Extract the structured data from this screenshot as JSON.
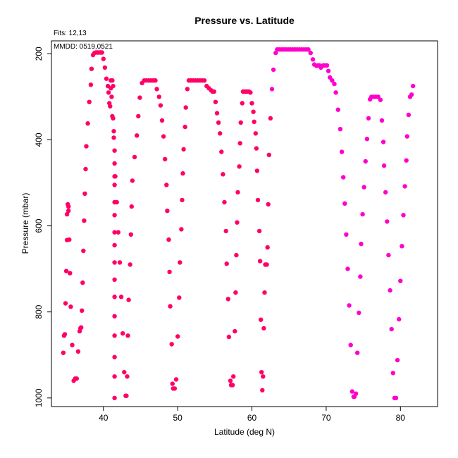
{
  "chart_data": {
    "type": "scatter",
    "title": "Pressure vs. Latitude",
    "xlabel": "Latitude (deg N)",
    "ylabel": "Pressure (mbar)",
    "xlim": [
      33,
      85
    ],
    "ylim": [
      1020,
      170
    ],
    "y_inverted": true,
    "xticks": [
      40,
      50,
      60,
      70,
      80
    ],
    "yticks": [
      200,
      400,
      600,
      800,
      1000
    ],
    "notes": {
      "fits": "Fits: 12,13",
      "mmdd": "MMDD: 0519,0521"
    },
    "colors": {
      "early": "#ff0066",
      "late": "#ff00cc"
    },
    "grid": false,
    "legend": "none",
    "series": [
      {
        "color_key": "early",
        "points": [
          [
            34.6,
            895
          ],
          [
            34.7,
            855
          ],
          [
            34.8,
            852
          ],
          [
            34.9,
            780
          ],
          [
            35.0,
            705
          ],
          [
            35.1,
            633
          ],
          [
            35.1,
            573
          ],
          [
            35.2,
            550
          ],
          [
            35.3,
            555
          ],
          [
            35.3,
            565
          ],
          [
            35.4,
            632
          ],
          [
            35.5,
            710
          ],
          [
            35.6,
            788
          ],
          [
            35.8,
            877
          ],
          [
            36.0,
            960
          ],
          [
            36.2,
            955
          ],
          [
            36.4,
            955
          ],
          [
            36.6,
            892
          ],
          [
            36.8,
            845
          ],
          [
            36.9,
            838
          ],
          [
            37.0,
            836
          ],
          [
            37.1,
            797
          ],
          [
            37.2,
            732
          ],
          [
            37.3,
            658
          ],
          [
            37.4,
            588
          ],
          [
            37.5,
            525
          ],
          [
            37.6,
            468
          ],
          [
            37.7,
            415
          ],
          [
            37.9,
            362
          ],
          [
            38.1,
            312
          ],
          [
            38.3,
            272
          ],
          [
            38.4,
            235
          ],
          [
            38.6,
            203
          ],
          [
            38.8,
            198
          ],
          [
            39.0,
            197
          ],
          [
            39.2,
            197
          ],
          [
            39.4,
            197
          ],
          [
            39.6,
            197
          ],
          [
            39.8,
            197
          ],
          [
            40.0,
            212
          ],
          [
            40.2,
            232
          ],
          [
            40.4,
            258
          ],
          [
            40.6,
            275
          ],
          [
            40.7,
            290
          ],
          [
            40.8,
            315
          ],
          [
            40.9,
            322
          ],
          [
            41.0,
            280
          ],
          [
            41.0,
            262
          ],
          [
            41.1,
            300
          ],
          [
            41.2,
            345
          ],
          [
            41.2,
            262
          ],
          [
            41.3,
            275
          ],
          [
            41.3,
            350
          ],
          [
            41.4,
            380
          ],
          [
            41.4,
            395
          ],
          [
            41.5,
            425
          ],
          [
            41.5,
            455
          ],
          [
            41.5,
            485
          ],
          [
            41.5,
            505
          ],
          [
            41.5,
            545
          ],
          [
            41.5,
            575
          ],
          [
            41.5,
            615
          ],
          [
            41.5,
            645
          ],
          [
            41.5,
            685
          ],
          [
            41.5,
            725
          ],
          [
            41.5,
            765
          ],
          [
            41.5,
            810
          ],
          [
            41.5,
            855
          ],
          [
            41.5,
            905
          ],
          [
            41.5,
            950
          ],
          [
            41.5,
            1000
          ],
          [
            41.6,
            485
          ],
          [
            41.8,
            545
          ],
          [
            42.0,
            615
          ],
          [
            42.2,
            685
          ],
          [
            42.4,
            765
          ],
          [
            42.6,
            850
          ],
          [
            42.8,
            940
          ],
          [
            43.0,
            995
          ],
          [
            43.1,
            995
          ],
          [
            43.2,
            950
          ],
          [
            43.3,
            855
          ],
          [
            43.4,
            772
          ],
          [
            43.6,
            690
          ],
          [
            43.7,
            620
          ],
          [
            43.8,
            555
          ],
          [
            43.9,
            495
          ],
          [
            44.2,
            440
          ],
          [
            44.5,
            390
          ],
          [
            44.7,
            345
          ],
          [
            44.9,
            302
          ],
          [
            45.2,
            268
          ],
          [
            45.5,
            262
          ],
          [
            45.8,
            262
          ],
          [
            46.1,
            262
          ],
          [
            46.4,
            262
          ],
          [
            46.7,
            262
          ],
          [
            47.0,
            262
          ],
          [
            47.2,
            282
          ],
          [
            47.5,
            300
          ],
          [
            47.7,
            320
          ],
          [
            47.9,
            355
          ],
          [
            48.1,
            392
          ],
          [
            48.3,
            445
          ],
          [
            48.5,
            505
          ],
          [
            48.6,
            565
          ],
          [
            48.8,
            632
          ],
          [
            48.9,
            707
          ],
          [
            49.0,
            787
          ],
          [
            49.2,
            875
          ],
          [
            49.3,
            967
          ],
          [
            49.4,
            978
          ],
          [
            49.6,
            978
          ],
          [
            49.8,
            957
          ],
          [
            50.0,
            857
          ],
          [
            50.2,
            767
          ],
          [
            50.3,
            685
          ],
          [
            50.5,
            608
          ],
          [
            50.6,
            540
          ],
          [
            50.7,
            478
          ],
          [
            50.8,
            422
          ],
          [
            51.0,
            370
          ],
          [
            51.1,
            325
          ],
          [
            51.3,
            282
          ],
          [
            51.5,
            262
          ],
          [
            51.8,
            262
          ],
          [
            52.1,
            262
          ],
          [
            52.4,
            262
          ],
          [
            52.7,
            262
          ],
          [
            53.0,
            262
          ],
          [
            53.3,
            262
          ],
          [
            53.6,
            262
          ],
          [
            53.9,
            275
          ],
          [
            54.2,
            280
          ],
          [
            54.5,
            285
          ],
          [
            54.7,
            288
          ],
          [
            54.9,
            288
          ],
          [
            55.1,
            312
          ],
          [
            55.3,
            338
          ],
          [
            55.5,
            360
          ],
          [
            55.7,
            385
          ],
          [
            55.9,
            428
          ],
          [
            56.1,
            480
          ],
          [
            56.3,
            545
          ],
          [
            56.5,
            612
          ],
          [
            56.6,
            688
          ],
          [
            56.8,
            770
          ],
          [
            56.9,
            858
          ],
          [
            57.1,
            960
          ],
          [
            57.2,
            970
          ],
          [
            57.4,
            970
          ],
          [
            57.5,
            950
          ],
          [
            57.7,
            845
          ],
          [
            57.8,
            755
          ],
          [
            57.9,
            668
          ],
          [
            58.0,
            592
          ],
          [
            58.1,
            522
          ],
          [
            58.3,
            462
          ],
          [
            58.4,
            408
          ],
          [
            58.5,
            360
          ],
          [
            58.7,
            315
          ],
          [
            58.8,
            288
          ],
          [
            59.0,
            288
          ],
          [
            59.2,
            288
          ],
          [
            59.4,
            288
          ],
          [
            59.6,
            288
          ],
          [
            59.8,
            290
          ],
          [
            60.0,
            315
          ],
          [
            60.2,
            335
          ],
          [
            60.3,
            358
          ],
          [
            60.5,
            385
          ],
          [
            60.6,
            420
          ],
          [
            60.7,
            472
          ],
          [
            60.8,
            540
          ],
          [
            61.0,
            612
          ],
          [
            61.1,
            682
          ],
          [
            61.2,
            818
          ],
          [
            61.3,
            940
          ],
          [
            61.4,
            982
          ],
          [
            61.5,
            950
          ],
          [
            61.6,
            838
          ],
          [
            61.7,
            755
          ],
          [
            61.8,
            690
          ],
          [
            62.0,
            690
          ],
          [
            62.1,
            650
          ],
          [
            62.2,
            550
          ],
          [
            62.3,
            435
          ],
          [
            62.5,
            350
          ]
        ]
      },
      {
        "color_key": "late",
        "points": [
          [
            62.7,
            282
          ],
          [
            62.9,
            237
          ],
          [
            63.2,
            198
          ],
          [
            63.4,
            190
          ],
          [
            63.7,
            190
          ],
          [
            64.0,
            190
          ],
          [
            64.3,
            190
          ],
          [
            64.6,
            190
          ],
          [
            64.9,
            190
          ],
          [
            65.2,
            190
          ],
          [
            65.5,
            190
          ],
          [
            65.8,
            190
          ],
          [
            66.1,
            190
          ],
          [
            66.4,
            190
          ],
          [
            66.7,
            190
          ],
          [
            67.0,
            190
          ],
          [
            67.3,
            190
          ],
          [
            67.6,
            190
          ],
          [
            67.9,
            198
          ],
          [
            68.2,
            213
          ],
          [
            68.4,
            225
          ],
          [
            68.7,
            228
          ],
          [
            68.9,
            227
          ],
          [
            69.1,
            227
          ],
          [
            69.3,
            232
          ],
          [
            69.6,
            227
          ],
          [
            69.8,
            227
          ],
          [
            70.1,
            227
          ],
          [
            70.3,
            240
          ],
          [
            70.5,
            255
          ],
          [
            70.8,
            262
          ],
          [
            71.1,
            270
          ],
          [
            71.3,
            290
          ],
          [
            71.6,
            330
          ],
          [
            71.9,
            375
          ],
          [
            72.1,
            428
          ],
          [
            72.3,
            487
          ],
          [
            72.5,
            548
          ],
          [
            72.7,
            620
          ],
          [
            72.9,
            700
          ],
          [
            73.1,
            785
          ],
          [
            73.3,
            877
          ],
          [
            73.5,
            985
          ],
          [
            73.7,
            997
          ],
          [
            73.8,
            997
          ],
          [
            74.0,
            990
          ],
          [
            74.2,
            895
          ],
          [
            74.4,
            802
          ],
          [
            74.6,
            718
          ],
          [
            74.7,
            642
          ],
          [
            74.9,
            573
          ],
          [
            75.1,
            510
          ],
          [
            75.3,
            450
          ],
          [
            75.5,
            398
          ],
          [
            75.7,
            350
          ],
          [
            75.9,
            306
          ],
          [
            76.1,
            300
          ],
          [
            76.4,
            300
          ],
          [
            76.7,
            300
          ],
          [
            77.0,
            300
          ],
          [
            77.3,
            307
          ],
          [
            77.5,
            355
          ],
          [
            77.7,
            405
          ],
          [
            77.8,
            460
          ],
          [
            78.0,
            522
          ],
          [
            78.2,
            590
          ],
          [
            78.4,
            668
          ],
          [
            78.6,
            750
          ],
          [
            78.8,
            840
          ],
          [
            79.0,
            942
          ],
          [
            79.2,
            1000
          ],
          [
            79.4,
            1000
          ],
          [
            79.6,
            912
          ],
          [
            79.8,
            817
          ],
          [
            80.0,
            728
          ],
          [
            80.2,
            647
          ],
          [
            80.4,
            575
          ],
          [
            80.6,
            508
          ],
          [
            80.8,
            448
          ],
          [
            80.9,
            392
          ],
          [
            81.1,
            342
          ],
          [
            81.3,
            300
          ],
          [
            81.5,
            295
          ],
          [
            81.7,
            275
          ]
        ]
      }
    ]
  }
}
